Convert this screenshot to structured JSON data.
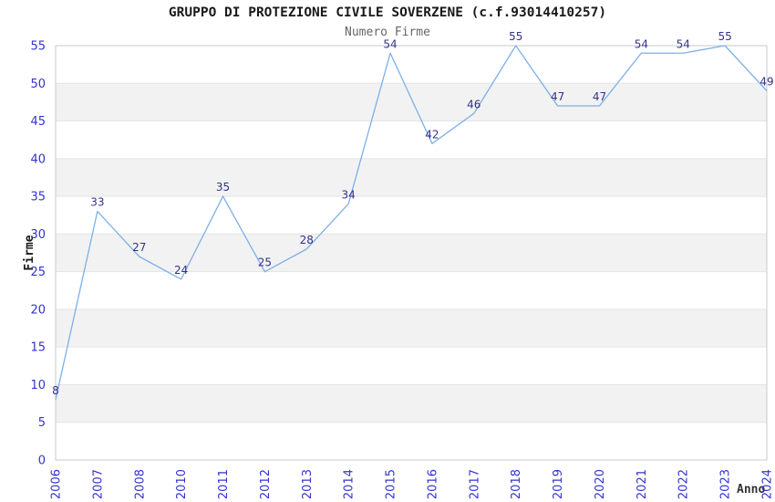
{
  "chart_data": {
    "type": "line",
    "title": "GRUPPO DI PROTEZIONE CIVILE SOVERZENE (c.f.93014410257)",
    "subtitle": "Numero Firme",
    "xlabel": "Anno",
    "ylabel": "Firme",
    "categories": [
      "2006",
      "2007",
      "2008",
      "2010",
      "2011",
      "2012",
      "2013",
      "2014",
      "2015",
      "2016",
      "2017",
      "2018",
      "2019",
      "2020",
      "2021",
      "2022",
      "2023",
      "2024"
    ],
    "values": [
      8,
      33,
      27,
      24,
      35,
      25,
      28,
      34,
      54,
      42,
      46,
      55,
      47,
      47,
      54,
      54,
      55,
      49
    ],
    "ylim": [
      0,
      55
    ],
    "ytick_step": 5,
    "xtick_rotation": -90,
    "grid": true,
    "alternating_bands": true,
    "legend_position": "none",
    "colors": {
      "line": "#7cb0e8",
      "data_label": "#333388",
      "tick_label": "#3333cc",
      "band": "#f2f2f2",
      "grid": "#e4e4e4",
      "frame": "#c9c9c9",
      "title": "#1a1a1a",
      "subtitle": "#666666"
    }
  }
}
